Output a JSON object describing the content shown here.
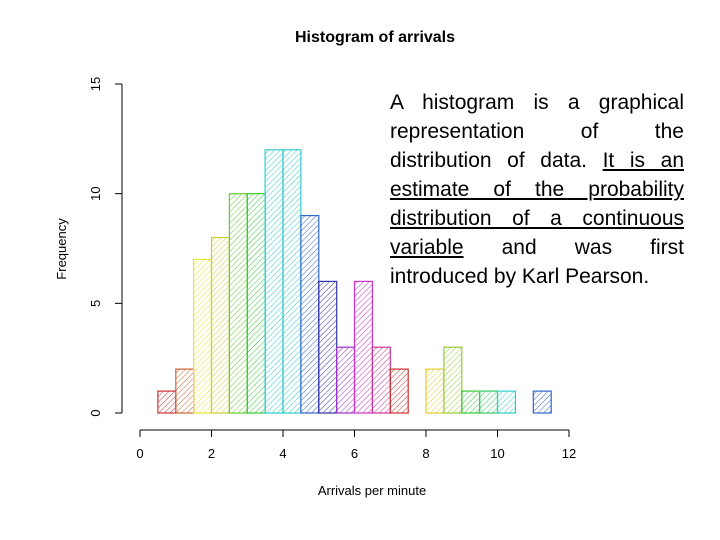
{
  "caption": {
    "before": "A histogram is a graphical representation of the distribution of data. ",
    "underlined": "It is an estimate of the probability distribution of a continuous variable",
    "after": " and was first introduced by Karl Pearson."
  },
  "chart_data": {
    "type": "bar",
    "title": "Histogram of arrivals",
    "xlabel": "Arrivals per minute",
    "ylabel": "Frequency",
    "xlim": [
      0,
      12
    ],
    "ylim": [
      0,
      15
    ],
    "x_ticks": [
      0,
      2,
      4,
      6,
      8,
      10,
      12
    ],
    "y_ticks": [
      0,
      5,
      10,
      15
    ],
    "bin_width": 0.5,
    "bin_starts": [
      0.5,
      1.0,
      1.5,
      2.0,
      2.5,
      3.0,
      3.5,
      4.0,
      4.5,
      5.0,
      5.5,
      6.0,
      6.5,
      7.0,
      7.5,
      8.0,
      8.5,
      9.0,
      9.5,
      10.0,
      10.5,
      11.0
    ],
    "values": [
      1,
      2,
      7,
      8,
      10,
      10,
      12,
      12,
      9,
      6,
      3,
      6,
      3,
      2,
      0,
      2,
      3,
      1,
      1,
      1,
      0,
      1
    ],
    "colors": [
      "#cc3333",
      "#cc6633",
      "#e6e633",
      "#cccc33",
      "#66cc33",
      "#33cc33",
      "#33cccc",
      "#33cccc",
      "#3366cc",
      "#3333aa",
      "#9933cc",
      "#cc33cc",
      "#cc3399",
      "#cc3333",
      "#cc3333",
      "#e6cc33",
      "#99cc33",
      "#33cc33",
      "#33cc66",
      "#33cccc",
      "#3399cc",
      "#3366cc"
    ],
    "grid": false
  }
}
